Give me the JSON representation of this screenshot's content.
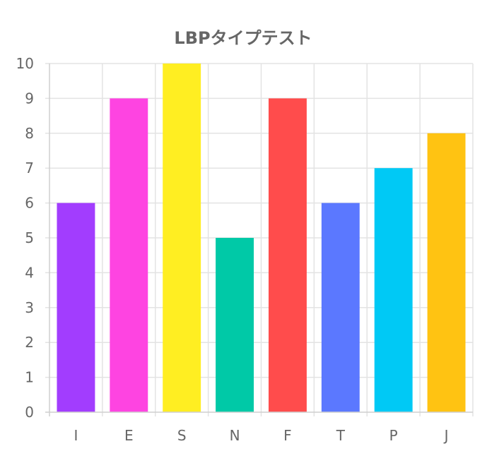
{
  "chart_data": {
    "type": "bar",
    "title": "LBPタイプテスト",
    "xlabel": "",
    "ylabel": "",
    "categories": [
      "I",
      "E",
      "S",
      "N",
      "F",
      "T",
      "P",
      "J"
    ],
    "values": [
      6,
      9,
      10,
      5,
      9,
      6,
      7,
      8
    ],
    "colors": [
      "#a23dfe",
      "#fe44e1",
      "#ffee22",
      "#00c9a7",
      "#ff4c4c",
      "#5b78ff",
      "#00c9f5",
      "#ffc312"
    ],
    "ylim": [
      0,
      10
    ],
    "yticks": [
      "0",
      "1",
      "2",
      "3",
      "4",
      "5",
      "6",
      "7",
      "8",
      "9",
      "10"
    ],
    "grid": true,
    "legend": "none"
  }
}
